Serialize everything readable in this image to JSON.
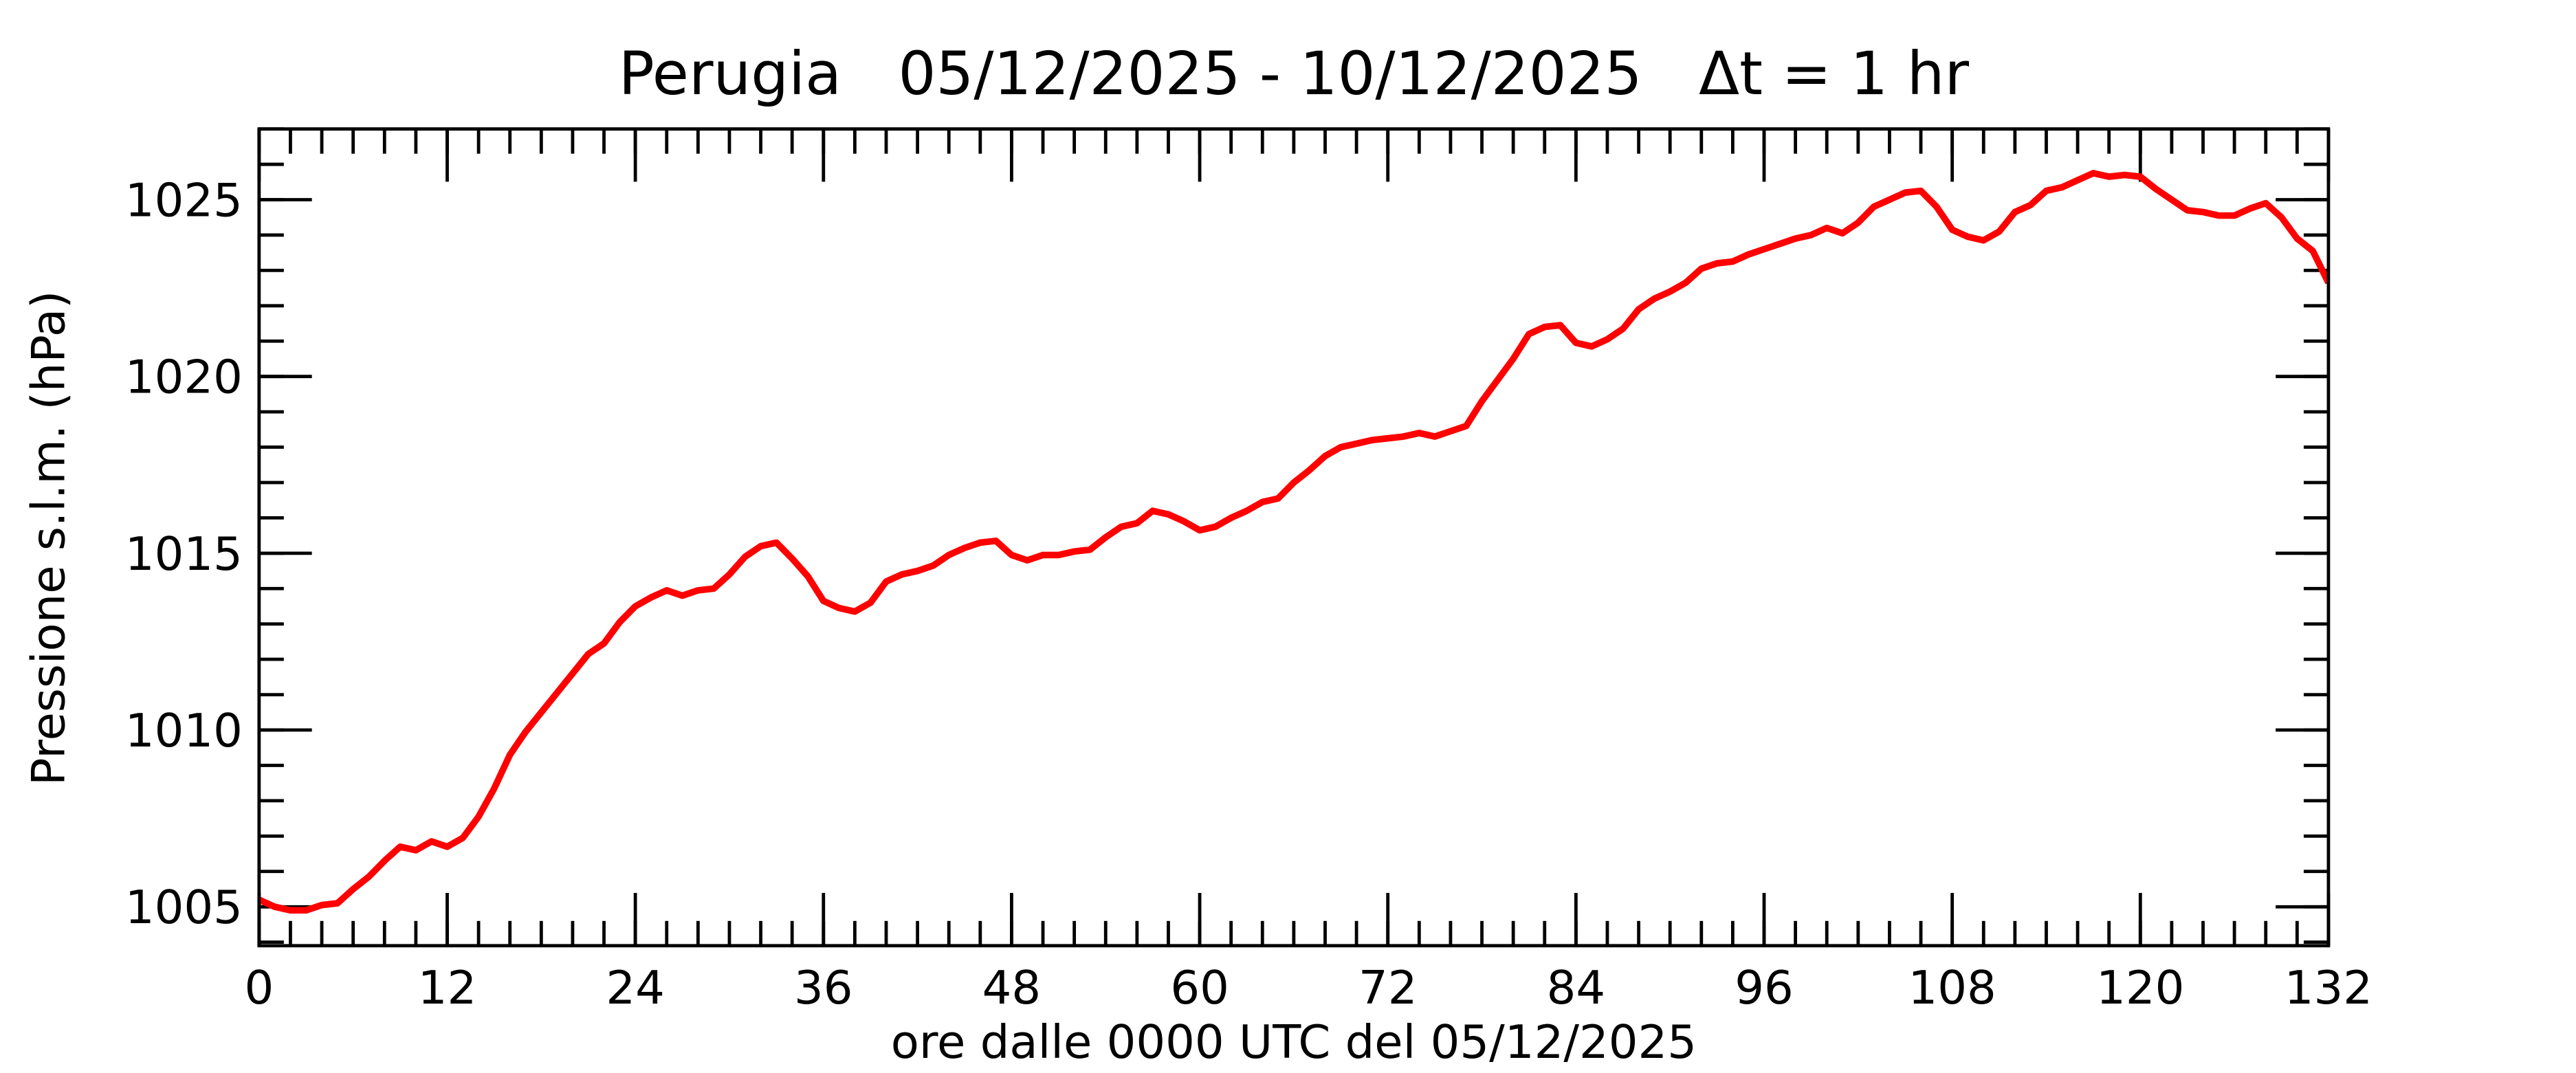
{
  "chart_data": {
    "type": "line",
    "title": "Perugia   05/12/2025 - 10/12/2025   Δt = 1 hr",
    "xlabel": "ore dalle 0000 UTC del 05/12/2025",
    "ylabel": "Pressione s.l.m. (hPa)",
    "x": [
      0,
      1,
      2,
      3,
      4,
      5,
      6,
      7,
      8,
      9,
      10,
      11,
      12,
      13,
      14,
      15,
      16,
      17,
      18,
      19,
      20,
      21,
      22,
      23,
      24,
      25,
      26,
      27,
      28,
      29,
      30,
      31,
      32,
      33,
      34,
      35,
      36,
      37,
      38,
      39,
      40,
      41,
      42,
      43,
      44,
      45,
      46,
      47,
      48,
      49,
      50,
      51,
      52,
      53,
      54,
      55,
      56,
      57,
      58,
      59,
      60,
      61,
      62,
      63,
      64,
      65,
      66,
      67,
      68,
      69,
      70,
      71,
      72,
      73,
      74,
      75,
      76,
      77,
      78,
      79,
      80,
      81,
      82,
      83,
      84,
      85,
      86,
      87,
      88,
      89,
      90,
      91,
      92,
      93,
      94,
      95,
      96,
      97,
      98,
      99,
      100,
      101,
      102,
      103,
      104,
      105,
      106,
      107,
      108,
      109,
      110,
      111,
      112,
      113,
      114,
      115,
      116,
      117,
      118,
      119,
      120,
      121,
      122,
      123,
      124,
      125,
      126,
      127,
      128,
      129,
      130,
      131,
      132
    ],
    "series": [
      {
        "name": "Pressione",
        "color": "#ff0000",
        "values": [
          1005.2,
          1005.0,
          1004.9,
          1004.9,
          1005.05,
          1005.1,
          1005.5,
          1005.85,
          1006.3,
          1006.7,
          1006.6,
          1006.85,
          1006.7,
          1006.95,
          1007.55,
          1008.35,
          1009.3,
          1009.95,
          1010.5,
          1011.05,
          1011.6,
          1012.15,
          1012.45,
          1013.05,
          1013.5,
          1013.75,
          1013.95,
          1013.8,
          1013.95,
          1014.0,
          1014.4,
          1014.9,
          1015.2,
          1015.3,
          1014.85,
          1014.35,
          1013.65,
          1013.45,
          1013.35,
          1013.6,
          1014.2,
          1014.4,
          1014.5,
          1014.65,
          1014.95,
          1015.15,
          1015.3,
          1015.35,
          1014.95,
          1014.8,
          1014.95,
          1014.95,
          1015.05,
          1015.1,
          1015.45,
          1015.75,
          1015.85,
          1016.2,
          1016.1,
          1015.9,
          1015.65,
          1015.75,
          1016.0,
          1016.2,
          1016.45,
          1016.55,
          1017.0,
          1017.35,
          1017.75,
          1018.0,
          1018.1,
          1018.2,
          1018.25,
          1018.3,
          1018.4,
          1018.3,
          1018.45,
          1018.6,
          1019.3,
          1019.9,
          1020.5,
          1021.2,
          1021.4,
          1021.45,
          1020.95,
          1020.85,
          1021.05,
          1021.35,
          1021.9,
          1022.2,
          1022.4,
          1022.65,
          1023.05,
          1023.2,
          1023.25,
          1023.45,
          1023.6,
          1023.75,
          1023.9,
          1024.0,
          1024.2,
          1024.05,
          1024.35,
          1024.8,
          1025.0,
          1025.2,
          1025.25,
          1024.8,
          1024.15,
          1023.95,
          1023.85,
          1024.1,
          1024.65,
          1024.85,
          1025.25,
          1025.35,
          1025.55,
          1025.75,
          1025.65,
          1025.7,
          1025.65,
          1025.3,
          1025.0,
          1024.7,
          1024.65,
          1024.55,
          1024.55,
          1024.75,
          1024.9,
          1024.5,
          1023.9,
          1023.55,
          1022.65
        ]
      }
    ],
    "xlim": [
      0,
      132
    ],
    "xticks": [
      0,
      12,
      24,
      36,
      48,
      60,
      72,
      84,
      96,
      108,
      120,
      132
    ],
    "ylim": [
      1003.9,
      1027
    ],
    "yticks": [
      1005,
      1010,
      1015,
      1020,
      1025
    ],
    "grid": false
  }
}
